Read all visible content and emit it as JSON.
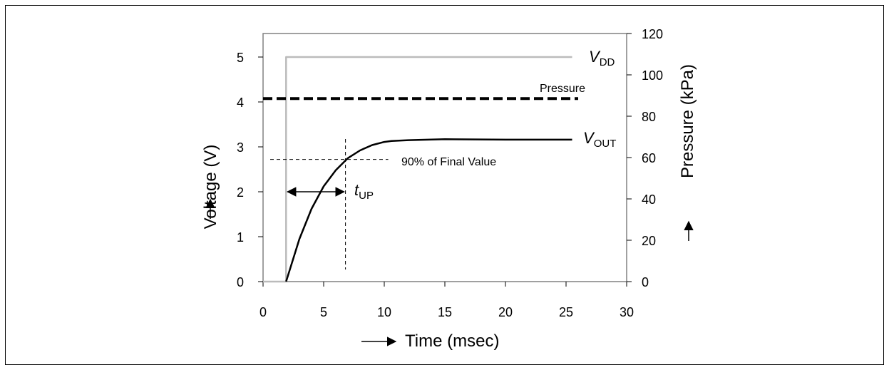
{
  "chart_data": {
    "type": "line",
    "xlabel": "Time (msec)",
    "ylabel": "Voltage (V)",
    "y2label": "Pressure (kPa)",
    "xlim": [
      0,
      30
    ],
    "ylim": [
      0,
      5.5
    ],
    "y2lim": [
      0,
      120
    ],
    "xticks": [
      0,
      5,
      10,
      15,
      20,
      25,
      30
    ],
    "yticks": [
      0,
      1,
      2,
      3,
      4,
      5
    ],
    "y2ticks": [
      0,
      20,
      40,
      60,
      80,
      100,
      120
    ],
    "grid": false,
    "series": [
      {
        "name": "VDD",
        "label_main": "V",
        "label_sub": "DD",
        "axis": "left",
        "color": "#bbbbbb",
        "style": "solid",
        "x": [
          0,
          1.9,
          1.9,
          25.5
        ],
        "y": [
          0,
          0,
          5.0,
          5.0
        ]
      },
      {
        "name": "Pressure",
        "label_main": "Pressure",
        "label_sub": "",
        "axis": "right",
        "color": "#000000",
        "style": "dashed",
        "x": [
          0,
          26
        ],
        "y": [
          88.5,
          88.5
        ]
      },
      {
        "name": "VOUT",
        "label_main": "V",
        "label_sub": "OUT",
        "axis": "left",
        "color": "#000000",
        "style": "solid",
        "x": [
          1.9,
          3,
          4,
          5,
          6,
          7,
          8,
          9,
          10,
          10.6,
          12,
          15,
          20,
          25.5
        ],
        "y": [
          0,
          0.95,
          1.62,
          2.12,
          2.48,
          2.75,
          2.92,
          3.04,
          3.11,
          3.13,
          3.15,
          3.17,
          3.16,
          3.16
        ]
      }
    ],
    "annotations": {
      "threshold_label": "90% of Final Value",
      "threshold_y": 2.72,
      "threshold_x": 6.8,
      "tup_main": "t",
      "tup_sub": "UP",
      "tup_from": 1.9,
      "tup_to": 6.8,
      "tup_y": 2.0
    }
  }
}
